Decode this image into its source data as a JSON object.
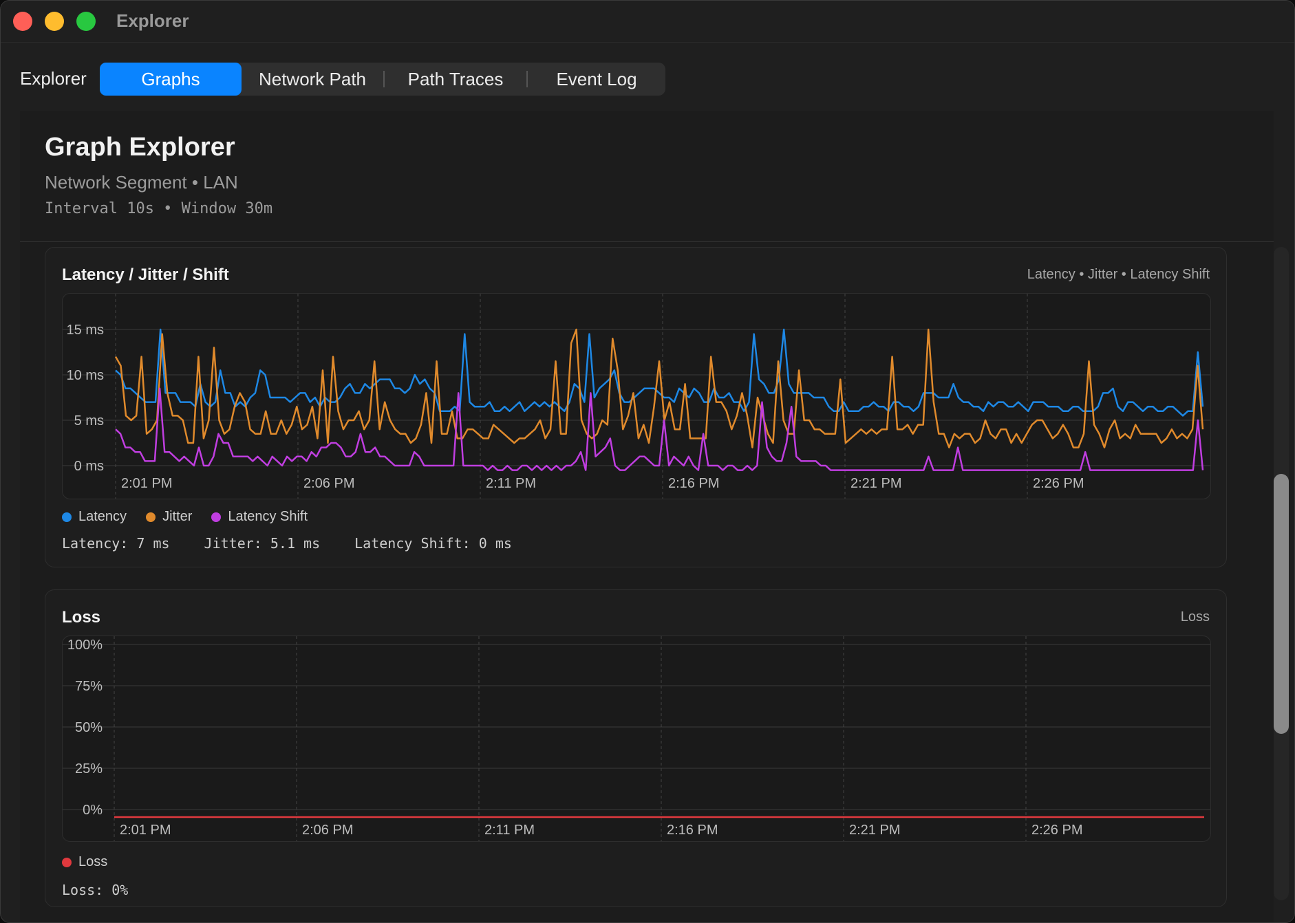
{
  "window": {
    "title": "Explorer"
  },
  "tabs": {
    "label": "Explorer",
    "items": [
      {
        "label": "Graphs",
        "active": true
      },
      {
        "label": "Network Path",
        "active": false
      },
      {
        "label": "Path Traces",
        "active": false
      },
      {
        "label": "Event Log",
        "active": false
      }
    ]
  },
  "header": {
    "title": "Graph Explorer",
    "subtitle": "Network Segment • LAN",
    "meta": "Interval 10s • Window 30m"
  },
  "latency_card": {
    "title": "Latency / Jitter / Shift",
    "legend_top": "Latency • Jitter • Latency Shift",
    "legend": [
      {
        "label": "Latency",
        "color": "#1e88e5"
      },
      {
        "label": "Jitter",
        "color": "#e08a2c"
      },
      {
        "label": "Latency Shift",
        "color": "#c03ee0"
      }
    ],
    "readouts": [
      "Latency: 7 ms",
      "Jitter: 5.1 ms",
      "Latency Shift: 0 ms"
    ]
  },
  "loss_card": {
    "title": "Loss",
    "legend_top": "Loss",
    "legend": [
      {
        "label": "Loss",
        "color": "#e0393e"
      }
    ],
    "readouts": [
      "Loss: 0%"
    ]
  },
  "chart_data": [
    {
      "type": "line",
      "title": "Latency / Jitter / Shift",
      "x_ticks": [
        "2:01 PM",
        "2:06 PM",
        "2:11 PM",
        "2:16 PM",
        "2:21 PM",
        "2:26 PM"
      ],
      "y_ticks": [
        "15 ms",
        "10 ms",
        "5 ms",
        "0 ms"
      ],
      "ylim": [
        0,
        15
      ],
      "xlim": [
        "2:01 PM",
        "2:31 PM"
      ],
      "grid": true,
      "series": [
        {
          "name": "Latency",
          "color": "#1e88e5",
          "values": [
            10.5,
            10,
            8.5,
            8.5,
            8,
            7.5,
            7,
            7,
            7,
            15,
            8,
            8,
            8,
            7,
            7,
            7,
            6.5,
            9,
            7,
            6.5,
            7,
            10.5,
            8,
            8,
            6.5,
            7,
            6.5,
            7.5,
            8,
            10.5,
            10,
            7.5,
            7.5,
            7.5,
            7.5,
            7,
            7.5,
            8,
            8,
            7,
            7.5,
            6.5,
            7.5,
            7,
            7,
            7.5,
            8.5,
            9,
            8,
            8,
            9,
            8.5,
            9,
            9.5,
            9.5,
            9.5,
            8.5,
            8.5,
            8,
            8.5,
            10,
            9,
            9.5,
            8.5,
            8,
            6,
            6,
            6,
            6.5,
            6,
            14.5,
            7,
            6.5,
            6.5,
            6.5,
            7,
            6,
            6,
            6.5,
            6,
            6.5,
            7,
            6,
            6.5,
            7,
            6.5,
            7,
            6.5,
            7,
            6.5,
            6,
            7,
            9,
            8.5,
            7,
            14.5,
            7.5,
            8.5,
            9,
            9.5,
            10.5,
            8,
            7,
            7,
            7.5,
            8,
            8.5,
            8.5,
            8.5,
            8,
            7.5,
            7.5,
            7,
            8.5,
            8,
            7.5,
            8.5,
            8,
            7,
            7,
            8.5,
            7.5,
            7.5,
            8,
            7,
            7,
            6,
            7,
            14.5,
            9.5,
            9,
            8,
            8,
            9.5,
            15,
            9,
            8,
            8,
            8,
            8,
            7.5,
            7.5,
            7.5,
            6.5,
            6,
            6,
            7,
            6,
            6,
            6,
            6.5,
            6.5,
            7,
            6.5,
            6.5,
            6,
            7,
            7,
            6.5,
            6.5,
            6,
            6.5,
            8,
            8,
            8,
            7.5,
            7.5,
            7.5,
            9,
            7.5,
            7,
            7,
            6.5,
            6.5,
            6,
            7,
            6.5,
            7,
            7,
            6.5,
            6.5,
            7,
            6.5,
            6,
            7,
            7,
            7,
            6.5,
            6.5,
            6.5,
            6,
            6,
            6.5,
            6.5,
            6,
            6,
            6,
            6.5,
            8,
            8,
            8.5,
            6.5,
            6,
            7,
            7,
            6.5,
            6,
            6.5,
            6.5,
            6,
            6,
            6.5,
            6.5,
            6,
            5.5,
            6,
            6,
            12.5,
            6.5
          ]
        },
        {
          "name": "Jitter",
          "color": "#e08a2c",
          "values": [
            12,
            11,
            5.5,
            5,
            5.5,
            12,
            3.5,
            4,
            5,
            14.5,
            8,
            5.5,
            5.5,
            5,
            2.5,
            2.5,
            12,
            3,
            5,
            13,
            5,
            3.5,
            4,
            6.5,
            8,
            7,
            4,
            3.5,
            3.5,
            6,
            3.5,
            3.5,
            5,
            3.5,
            4.5,
            6.5,
            4,
            4.5,
            6.5,
            3,
            10.5,
            2.5,
            12,
            6,
            4,
            5,
            5,
            6,
            4,
            5,
            11.5,
            4,
            7,
            5,
            4,
            3.5,
            3.5,
            2.5,
            3,
            4.5,
            8,
            2.5,
            11.5,
            3.5,
            3.5,
            6,
            3,
            3,
            4,
            4,
            3.5,
            3,
            3,
            4.5,
            4,
            3.5,
            3,
            2.5,
            3,
            3,
            3.5,
            4,
            5,
            3,
            4,
            11.5,
            3.5,
            3.5,
            13.5,
            15,
            5,
            3.5,
            3,
            3.5,
            5,
            4.5,
            14,
            10.5,
            4,
            5.5,
            8,
            3,
            4.5,
            2.5,
            6.5,
            11.5,
            5,
            7,
            4,
            4,
            9,
            3,
            3,
            3,
            3,
            12,
            7,
            7,
            6,
            4,
            5.5,
            8,
            5.5,
            2,
            7.5,
            5.5,
            3.5,
            2.5,
            11.5,
            5,
            3.5,
            3.5,
            10.5,
            5,
            5,
            4,
            4,
            3.5,
            3.5,
            3.5,
            9.5,
            2.5,
            3,
            3.5,
            4,
            3.5,
            4,
            3.5,
            4,
            4,
            12,
            4,
            4,
            4.5,
            3.5,
            4.5,
            4.5,
            15,
            7,
            3.5,
            3.5,
            2,
            3.5,
            3,
            3.5,
            3.5,
            2.5,
            3,
            5,
            3.5,
            3,
            4,
            4,
            2.5,
            3.5,
            2.5,
            3.5,
            4.5,
            5,
            5,
            4,
            3,
            3.5,
            4.5,
            3.5,
            2,
            2,
            3.5,
            11.5,
            4.5,
            3.5,
            2,
            4,
            5,
            3,
            3.5,
            3,
            4.5,
            3.5,
            3.5,
            3.5,
            3.5,
            2.5,
            3,
            4,
            3,
            3.5,
            3,
            4,
            11,
            4
          ]
        },
        {
          "name": "Latency Shift",
          "color": "#c03ee0",
          "values": [
            4,
            3.5,
            2,
            2,
            1.5,
            1.5,
            0.5,
            0.5,
            0.5,
            8.5,
            1.5,
            1.5,
            1,
            0.5,
            1,
            0.5,
            0,
            2,
            0,
            0,
            1,
            3.5,
            2.5,
            2.5,
            1,
            1,
            1,
            1,
            0.5,
            1,
            0.5,
            0,
            1,
            0.5,
            0,
            1,
            0.5,
            1,
            1,
            0.5,
            1.5,
            1,
            2,
            2,
            2.5,
            2.5,
            2,
            1,
            1,
            1.5,
            3.5,
            1.5,
            1.5,
            2,
            1,
            1,
            0.5,
            0,
            0,
            0,
            0,
            1.5,
            1,
            0,
            0,
            0,
            0,
            0,
            0,
            0,
            8,
            0,
            0,
            0,
            0,
            0,
            -0.5,
            0,
            -0.5,
            -0.5,
            0,
            -0.5,
            -0.5,
            0,
            0,
            -0.5,
            0,
            -0.5,
            0,
            -0.5,
            0,
            -0.5,
            0,
            0,
            0.5,
            1.5,
            -0.5,
            8,
            1,
            1.5,
            2,
            3,
            0,
            -0.5,
            -0.5,
            0,
            0.5,
            1,
            1,
            0.5,
            0,
            0,
            5,
            0,
            1,
            0.5,
            0,
            1,
            0,
            -0.5,
            3.5,
            0,
            0,
            0,
            -0.5,
            0,
            0,
            -0.5,
            -0.5,
            0,
            -0.5,
            0,
            7,
            2,
            1,
            0.5,
            0.5,
            2.5,
            6.5,
            1,
            0.5,
            0.5,
            0.5,
            0.5,
            0,
            0,
            -0.5,
            -0.5,
            -0.5,
            -0.5,
            -0.5,
            -0.5,
            -0.5,
            -0.5,
            -0.5,
            -0.5,
            -0.5,
            -0.5,
            -0.5,
            -0.5,
            -0.5,
            -0.5,
            -0.5,
            -0.5,
            -0.5,
            -0.5,
            1,
            -0.5,
            -0.5,
            -0.5,
            -0.5,
            -0.5,
            2,
            -0.5,
            -0.5,
            -0.5,
            -0.5,
            -0.5,
            -0.5,
            -0.5,
            -0.5,
            -0.5,
            -0.5,
            -0.5,
            -0.5,
            -0.5,
            -0.5,
            -0.5,
            -0.5,
            -0.5,
            -0.5,
            -0.5,
            -0.5,
            -0.5,
            -0.5,
            -0.5,
            -0.5,
            -0.5,
            1.5,
            -0.5,
            -0.5,
            -0.5,
            -0.5,
            -0.5,
            -0.5,
            -0.5,
            -0.5,
            -0.5,
            -0.5,
            -0.5,
            -0.5,
            -0.5,
            -0.5,
            -0.5,
            -0.5,
            -0.5,
            -0.5,
            -0.5,
            -0.5,
            -0.5,
            -0.5,
            5,
            -0.5
          ]
        }
      ]
    },
    {
      "type": "line",
      "title": "Loss",
      "x_ticks": [
        "2:01 PM",
        "2:06 PM",
        "2:11 PM",
        "2:16 PM",
        "2:21 PM",
        "2:26 PM"
      ],
      "y_ticks": [
        "100%",
        "75%",
        "50%",
        "25%",
        "0%"
      ],
      "ylim": [
        0,
        100
      ],
      "xlim": [
        "2:01 PM",
        "2:31 PM"
      ],
      "grid": true,
      "series": [
        {
          "name": "Loss",
          "color": "#e0393e",
          "values": [
            0,
            0
          ]
        }
      ]
    }
  ]
}
